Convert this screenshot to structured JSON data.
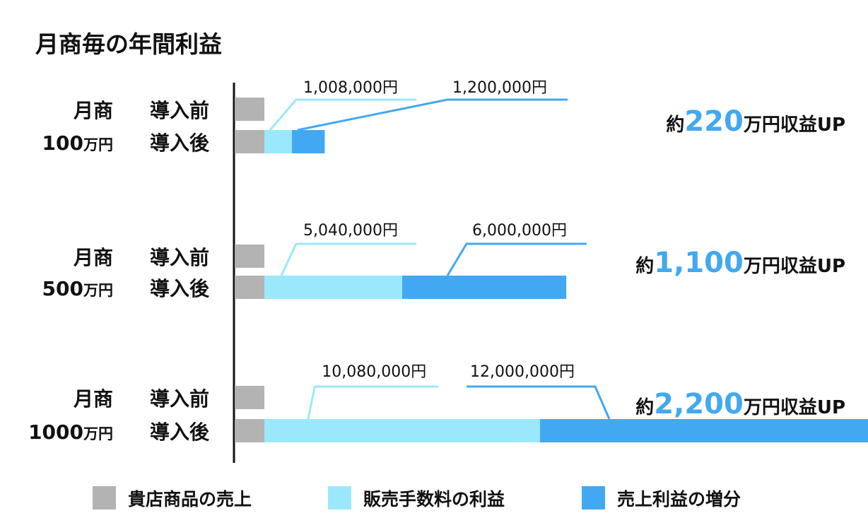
{
  "chart_data": {
    "type": "bar",
    "title": "月商毎の年間利益",
    "row_label_before": "導入前",
    "row_label_after": "導入後",
    "group_prefix": "月商",
    "unit": "万円",
    "up_prefix": "約",
    "up_suffix": "万円収益UP",
    "colors": {
      "store_sales": "#b3b3b3",
      "commission_profit": "#9be8fb",
      "sales_profit_increase": "#42a8f1",
      "axis": "#111111",
      "up_number": "#42a8f1"
    },
    "legend": [
      {
        "name": "貴店商品の売上",
        "color_key": "store_sales"
      },
      {
        "name": "販売手数料の利益",
        "color_key": "commission_profit"
      },
      {
        "name": "売上利益の増分",
        "color_key": "sales_profit_increase"
      }
    ],
    "groups": [
      {
        "monthly_sales": "100",
        "store_sales": 100,
        "commission_profit": 1008000,
        "sales_profit_increase": 1200000,
        "commission_label": "1,008,000円",
        "increase_label": "1,200,000円",
        "up_value": "220"
      },
      {
        "monthly_sales": "500",
        "store_sales": 500,
        "commission_profit": 5040000,
        "sales_profit_increase": 6000000,
        "commission_label": "5,040,000円",
        "increase_label": "6,000,000円",
        "up_value": "1,100"
      },
      {
        "monthly_sales": "1000",
        "store_sales": 1000,
        "commission_profit": 10080000,
        "sales_profit_increase": 12000000,
        "commission_label": "10,080,000円",
        "increase_label": "12,000,000円",
        "up_value": "2,200"
      }
    ]
  }
}
